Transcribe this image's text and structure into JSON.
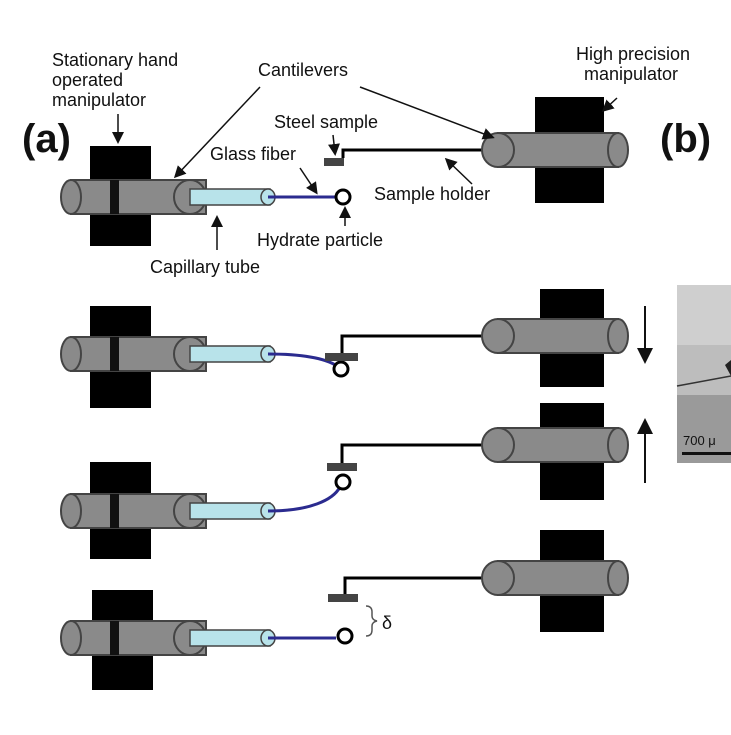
{
  "panel_a": {
    "label": "(a)",
    "labels": {
      "stationary": [
        "Stationary hand",
        "operated",
        "manipulator"
      ],
      "cantilevers": "Cantilevers",
      "high_precision": [
        "High precision",
        "manipulator"
      ],
      "steel_sample": "Steel sample",
      "glass_fiber": "Glass fiber",
      "sample_holder": "Sample holder",
      "hydrate_particle": "Hydrate particle",
      "capillary_tube": "Capillary tube",
      "delta": "δ"
    }
  },
  "panel_b": {
    "label": "(b)",
    "scale_bar_text": "700 μ"
  },
  "colors": {
    "block": "#000000",
    "cylinder": "#8a8a8a",
    "capillary": "#b8e3ea",
    "fiber": "#2b2b8f",
    "steel": "#444444"
  }
}
